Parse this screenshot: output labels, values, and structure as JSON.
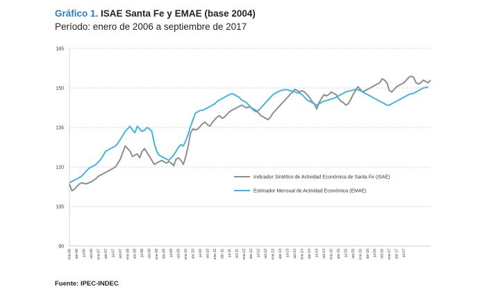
{
  "header": {
    "title_prefix": "Gráfico 1.",
    "title_main": " ISAE Santa Fe y EMAE (base 2004)",
    "subtitle": "Período: enero de 2006 a septiembre de 2017"
  },
  "footer": {
    "source": "Fuente: IPEC-INDEC"
  },
  "chart_data": {
    "type": "line",
    "title": "ISAE Santa Fe y EMAE (base 2004)",
    "subtitle": "Período: enero de 2006 a septiembre de 2017",
    "xlabel": "",
    "ylabel": "",
    "ylim": [
      90,
      165
    ],
    "yticks": [
      90,
      105,
      120,
      135,
      150,
      165
    ],
    "grid": "horizontal dotted",
    "legend_position": "center-right",
    "x_tick_labels": [
      "ene-06",
      "abr-06",
      "jul-06",
      "oct-06",
      "ene-07",
      "abr-07",
      "jul-07",
      "oct-07",
      "ene-08",
      "abr-08",
      "jul-08",
      "oct-08",
      "ene-09",
      "abr-09",
      "jul-09",
      "oct-09",
      "ene-10",
      "abr-10",
      "jul-10",
      "oct-10",
      "ene-11",
      "abr-11",
      "jul-11",
      "oct-11",
      "ene-12",
      "abr-12",
      "jul-12",
      "oct-12",
      "ene-13",
      "abr-13",
      "jul-13",
      "oct-13",
      "ene-14",
      "abr-14",
      "jul-14",
      "oct-14",
      "ene-15",
      "abr-15",
      "jul-15",
      "oct-15",
      "ene-16",
      "abr-16",
      "jul-16",
      "oct-16",
      "ene-17",
      "abr-17",
      "jul-17"
    ],
    "series": [
      {
        "name": "Indicador Sintético de Actividad Económica de Santa Fe (ISAE)",
        "color": "#8c8c8c",
        "values": [
          113.5,
          111.0,
          111.5,
          112.5,
          113.5,
          114.0,
          113.8,
          113.6,
          114.0,
          114.4,
          115.0,
          115.6,
          116.5,
          117.0,
          117.5,
          118.0,
          118.5,
          119.0,
          119.5,
          120.0,
          121.5,
          123.0,
          125.5,
          128.0,
          127.0,
          126.0,
          124.0,
          124.5,
          125.0,
          123.5,
          126.0,
          127.0,
          125.5,
          124.0,
          122.5,
          121.0,
          121.5,
          122.0,
          122.5,
          122.0,
          121.5,
          122.0,
          121.5,
          120.5,
          123.0,
          123.5,
          122.5,
          121.0,
          124.0,
          128.0,
          133.0,
          134.5,
          134.0,
          134.5,
          135.5,
          136.5,
          137.0,
          136.0,
          135.5,
          137.0,
          138.0,
          139.0,
          139.5,
          138.5,
          139.0,
          140.0,
          141.0,
          141.5,
          142.0,
          142.5,
          143.0,
          143.5,
          143.0,
          142.5,
          142.8,
          142.5,
          142.0,
          141.5,
          140.5,
          139.5,
          139.0,
          138.5,
          138.0,
          139.0,
          140.5,
          141.5,
          142.5,
          143.5,
          144.5,
          145.5,
          146.5,
          147.5,
          148.5,
          149.5,
          149.0,
          148.5,
          149.0,
          148.5,
          147.5,
          146.5,
          145.0,
          144.0,
          142.0,
          144.5,
          146.0,
          147.5,
          147.0,
          147.5,
          148.5,
          148.0,
          147.5,
          146.0,
          145.0,
          144.5,
          143.5,
          144.0,
          145.5,
          147.5,
          149.0,
          150.5,
          149.5,
          148.5,
          149.0,
          149.5,
          150.0,
          150.5,
          151.0,
          151.5,
          152.0,
          153.5,
          153.0,
          152.0,
          149.0,
          148.5,
          149.5,
          150.5,
          151.0,
          151.5,
          152.0,
          153.0,
          154.0,
          154.5,
          154.0,
          152.0,
          151.5,
          152.0,
          153.0,
          152.5,
          152.0,
          153.0
        ]
      },
      {
        "name": "Estimador Mensual de Actividad Económica (EMAE)",
        "color": "#41b3e0",
        "values": [
          114.0,
          114.5,
          115.0,
          115.5,
          116.0,
          116.5,
          117.5,
          118.5,
          119.5,
          120.0,
          120.5,
          121.0,
          122.0,
          123.0,
          124.5,
          126.0,
          126.5,
          127.0,
          127.5,
          128.0,
          129.0,
          130.5,
          132.0,
          133.5,
          134.5,
          135.5,
          134.0,
          133.0,
          135.5,
          134.5,
          133.5,
          134.0,
          135.0,
          134.5,
          133.5,
          129.0,
          126.0,
          124.5,
          124.0,
          123.5,
          123.0,
          122.5,
          123.5,
          124.5,
          126.0,
          127.5,
          128.5,
          128.0,
          130.0,
          132.5,
          135.5,
          138.0,
          140.5,
          141.0,
          141.5,
          141.5,
          142.0,
          142.5,
          143.0,
          143.5,
          144.0,
          145.0,
          145.5,
          146.0,
          146.5,
          147.0,
          147.5,
          147.8,
          147.5,
          147.0,
          146.5,
          145.5,
          145.0,
          144.5,
          143.5,
          142.5,
          141.5,
          141.0,
          141.5,
          142.5,
          143.5,
          144.5,
          145.5,
          146.5,
          147.5,
          148.0,
          148.5,
          149.0,
          149.2,
          149.4,
          149.3,
          149.0,
          148.8,
          148.5,
          148.2,
          148.0,
          147.5,
          146.5,
          145.5,
          145.0,
          144.5,
          144.0,
          143.5,
          144.0,
          144.5,
          145.0,
          145.2,
          145.5,
          145.8,
          146.0,
          146.5,
          147.0,
          147.5,
          148.0,
          148.5,
          148.8,
          149.0,
          149.2,
          149.5,
          149.3,
          149.0,
          148.5,
          148.0,
          147.5,
          147.0,
          146.5,
          146.0,
          145.5,
          145.0,
          144.5,
          144.0,
          143.5,
          143.5,
          144.0,
          144.5,
          145.0,
          145.5,
          146.0,
          146.5,
          147.0,
          147.5,
          147.8,
          148.0,
          148.5,
          149.0,
          149.5,
          150.0,
          150.2,
          150.5
        ]
      }
    ]
  }
}
